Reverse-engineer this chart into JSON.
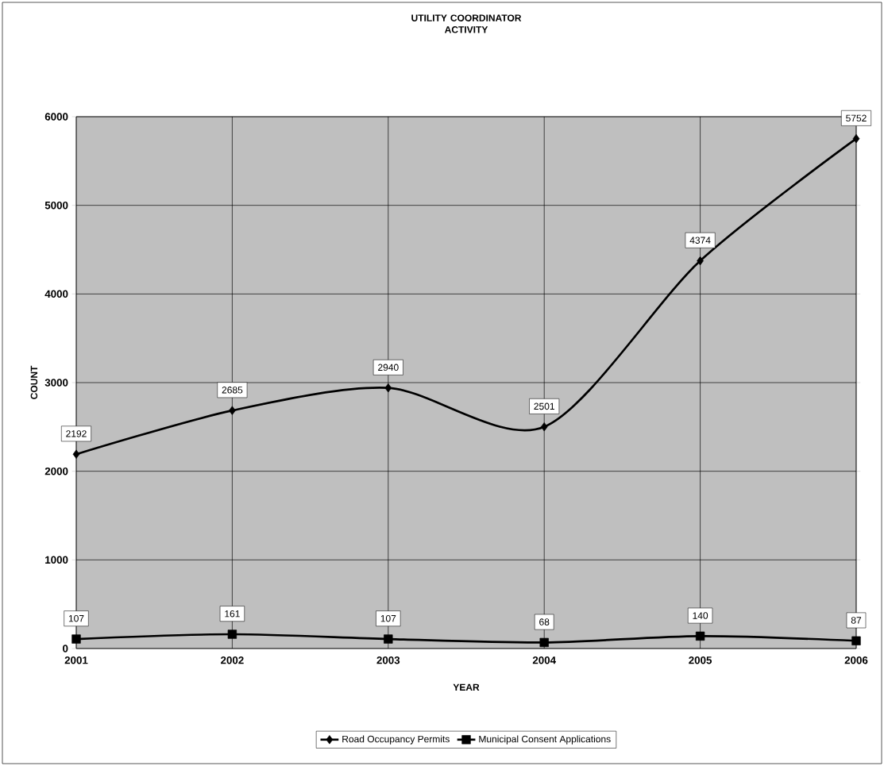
{
  "chart_data": {
    "type": "line",
    "title": "UTILITY COORDINATOR ACTIVITY",
    "xlabel": "YEAR",
    "ylabel": "COUNT",
    "categories": [
      "2001",
      "2002",
      "2003",
      "2004",
      "2005",
      "2006"
    ],
    "series": [
      {
        "name": "Road Occupancy Permits",
        "color": "#000000",
        "marker": "diamond",
        "values": [
          2192,
          2685,
          2940,
          2501,
          4374,
          5752
        ]
      },
      {
        "name": "Municipal Consent Applications",
        "color": "#000000",
        "marker": "square",
        "values": [
          107,
          161,
          107,
          68,
          140,
          87
        ]
      }
    ],
    "ylim": [
      0,
      6000
    ],
    "yticks": [
      0,
      1000,
      2000,
      3000,
      4000,
      5000,
      6000
    ],
    "grid": true,
    "legend": "bottom",
    "data_labels": true,
    "line_style": "solid"
  }
}
